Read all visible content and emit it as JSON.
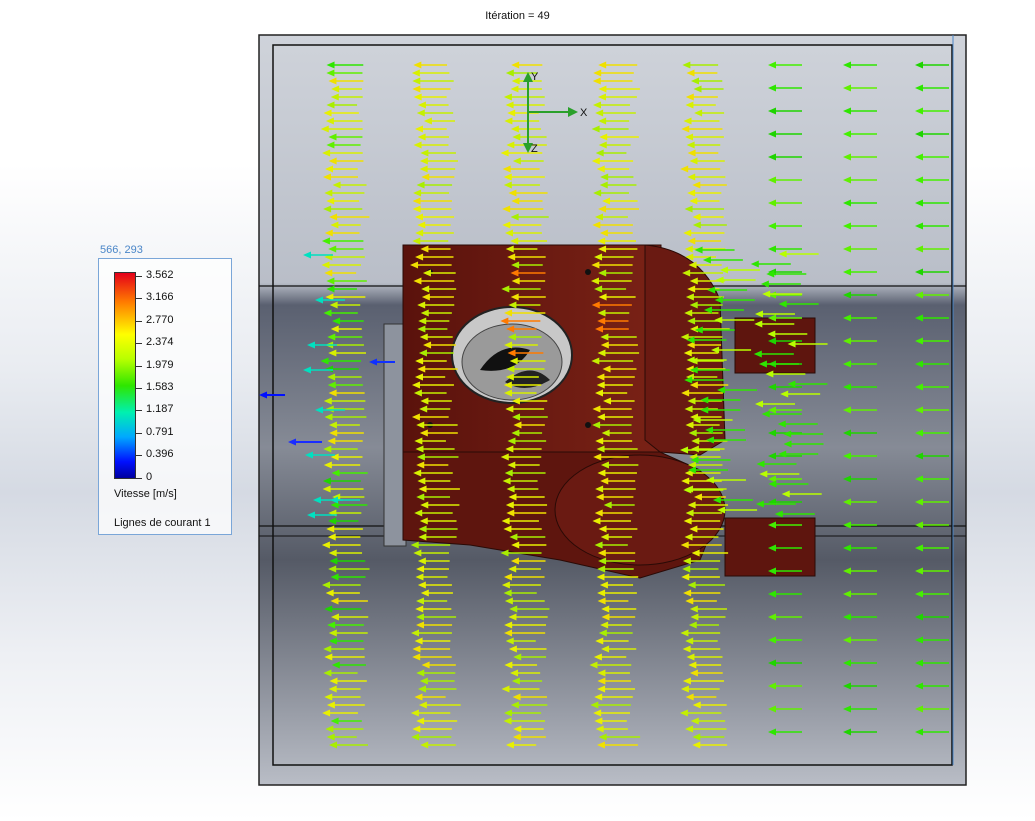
{
  "header": {
    "iteration": "Itération = 49"
  },
  "cursor_readout": "566, 293",
  "legend": {
    "values": [
      "3.562",
      "3.166",
      "2.770",
      "2.374",
      "1.979",
      "1.583",
      "1.187",
      "0.791",
      "0.396",
      "0"
    ],
    "unit_label": "Vitesse [m/s]",
    "plot_name": "Lignes de courant 1",
    "colors": [
      "#e4001a",
      "#ff7a00",
      "#ffff00",
      "#b8ff00",
      "#2ee600",
      "#00f0b0",
      "#00a8ff",
      "#0010ff",
      "#0000a0"
    ]
  },
  "triad": {
    "x_label": "X",
    "y_label": "Y",
    "z_label": "Z"
  },
  "colors": {
    "part": "#6e1a12",
    "arrow_yellow": "#e8f000",
    "arrow_green": "#2ee600",
    "arrow_blue": "#0010ff"
  }
}
